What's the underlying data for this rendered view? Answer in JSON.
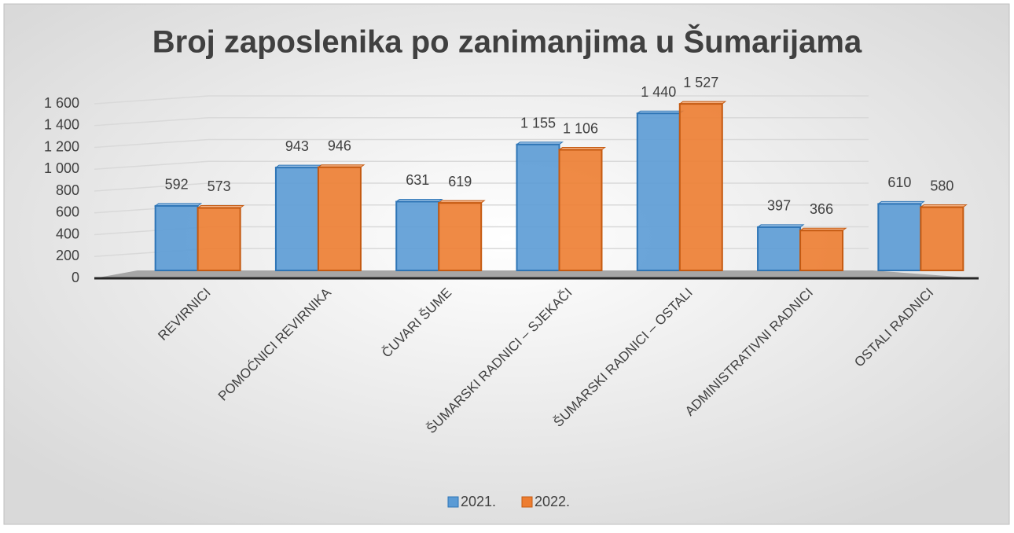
{
  "chart_data": {
    "type": "bar",
    "title": "Broj zaposlenika po zanimanjima u Šumarijama",
    "categories": [
      "REVIRNICI",
      "POMOĆNICI REVIRNIKA",
      "ČUVARI ŠUME",
      "ŠUMARSKI RADNICI – SJEKAČI",
      "ŠUMARSKI RADNICI – OSTALI",
      "ADMINISTRATIVNI RADNICI",
      "OSTALI RADNICI"
    ],
    "series": [
      {
        "name": "2021.",
        "color": "#5b9bd5",
        "values": [
          592,
          943,
          631,
          1155,
          1440,
          397,
          610
        ],
        "value_labels": [
          "592",
          "943",
          "631",
          "1 155",
          "1 440",
          "397",
          "610"
        ]
      },
      {
        "name": "2022.",
        "color": "#ed7d31",
        "values": [
          573,
          946,
          619,
          1106,
          1527,
          366,
          580
        ],
        "value_labels": [
          "573",
          "946",
          "619",
          "1 106",
          "1 527",
          "366",
          "580"
        ]
      }
    ],
    "ylim": [
      0,
      1600
    ],
    "yticks": [
      0,
      200,
      400,
      600,
      800,
      {
        "value": 1000,
        "label": "1 000"
      },
      {
        "value": 1200,
        "label": "1 200"
      },
      {
        "value": 1400,
        "label": "1 400"
      },
      {
        "value": 1600,
        "label": "1 600"
      }
    ],
    "grid": true,
    "legend": "bottom"
  }
}
